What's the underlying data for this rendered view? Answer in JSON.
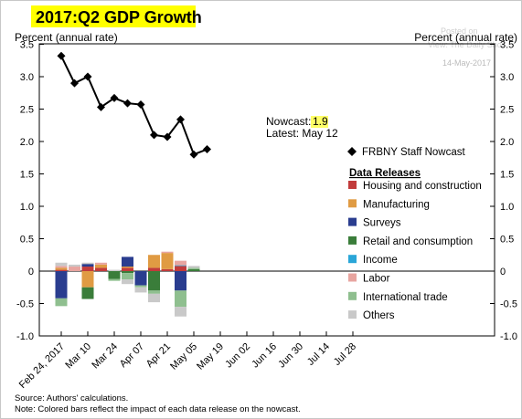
{
  "chart_data": {
    "type": "bar",
    "title": "2017:Q2 GDP Growth",
    "watermark": {
      "line1": "Posted on",
      "line2": "View: The Daily Shot",
      "date": "14-May-2017"
    },
    "ylabel_left": "Percent (annual rate)",
    "ylabel_right": "Percent (annual rate)",
    "ylim": [
      -1.0,
      3.5
    ],
    "yticks": [
      "3.5",
      "3.0",
      "2.5",
      "2.0",
      "1.5",
      "1.0",
      "0.5",
      "0",
      "-0.5",
      "-1.0"
    ],
    "ytick_values": [
      3.5,
      3.0,
      2.5,
      2.0,
      1.5,
      1.0,
      0.5,
      0,
      -0.5,
      -1.0
    ],
    "xtick_labels": [
      "Feb 24, 2017",
      "Mar 10",
      "Mar 24",
      "Apr 07",
      "Apr 21",
      "May 05",
      "May 19",
      "Jun 02",
      "Jun 16",
      "Jun 30",
      "Jul 14",
      "Jul 28"
    ],
    "x_weeks": [
      "Feb 24",
      "Mar 03",
      "Mar 10",
      "Mar 17",
      "Mar 24",
      "Mar 31",
      "Apr 07",
      "Apr 14",
      "Apr 21",
      "Apr 28",
      "May 05",
      "May 12"
    ],
    "nowcast": {
      "name": "FRBNY Staff Nowcast",
      "values": [
        3.32,
        2.9,
        3.0,
        2.53,
        2.67,
        2.59,
        2.57,
        2.1,
        2.07,
        2.34,
        1.8,
        1.88
      ]
    },
    "series": [
      {
        "name": "Housing and construction",
        "color": "#c23b3b",
        "values": [
          0.02,
          0.0,
          0.07,
          0.05,
          0.0,
          0.05,
          0.0,
          0.05,
          0.03,
          0.08,
          0.0,
          0.0
        ]
      },
      {
        "name": "Manufacturing",
        "color": "#e09b43",
        "values": [
          0.03,
          0.0,
          -0.25,
          0.05,
          0.0,
          0.02,
          0.0,
          0.2,
          0.25,
          0.0,
          0.0,
          0.0
        ]
      },
      {
        "name": "Surveys",
        "color": "#2a3d8f",
        "values": [
          -0.42,
          0.0,
          0.04,
          0.0,
          0.0,
          0.15,
          -0.22,
          0.0,
          0.0,
          -0.3,
          0.0,
          0.0
        ]
      },
      {
        "name": "Retail and consumption",
        "color": "#3a7d3a",
        "values": [
          0.0,
          0.0,
          -0.18,
          0.0,
          -0.12,
          -0.03,
          0.0,
          -0.3,
          0.0,
          0.0,
          0.03,
          0.0
        ]
      },
      {
        "name": "Income",
        "color": "#2aa6d8",
        "values": [
          0.0,
          0.0,
          0.0,
          0.0,
          0.0,
          0.0,
          0.0,
          0.0,
          0.0,
          0.01,
          0.0,
          0.0
        ]
      },
      {
        "name": "Labor",
        "color": "#e8a5a0",
        "values": [
          0.03,
          0.07,
          0.0,
          0.03,
          0.0,
          0.0,
          0.0,
          0.0,
          0.02,
          0.07,
          0.0,
          0.0
        ]
      },
      {
        "name": "International trade",
        "color": "#8fbf8f",
        "values": [
          -0.12,
          0.0,
          0.0,
          0.0,
          -0.03,
          -0.1,
          -0.03,
          -0.05,
          0.0,
          -0.25,
          0.02,
          0.0
        ]
      },
      {
        "name": "Others",
        "color": "#c9c9c9",
        "values": [
          0.05,
          0.03,
          0.02,
          0.0,
          0.02,
          -0.07,
          -0.08,
          -0.13,
          0.0,
          -0.15,
          0.03,
          0.0
        ]
      }
    ],
    "annotation": {
      "label": "Nowcast:",
      "value": "1.9",
      "latest": "Latest: May 12"
    },
    "legend_heading": "Data Releases",
    "legend_placement": "right",
    "footnotes": [
      "Source: Authors' calculations.",
      "Note: Colored bars reflect the impact of each data release on the nowcast."
    ],
    "colors": {
      "title_highlight": "#ffff00",
      "nowcast_highlight": "#ffff66",
      "line": "#000000"
    }
  }
}
